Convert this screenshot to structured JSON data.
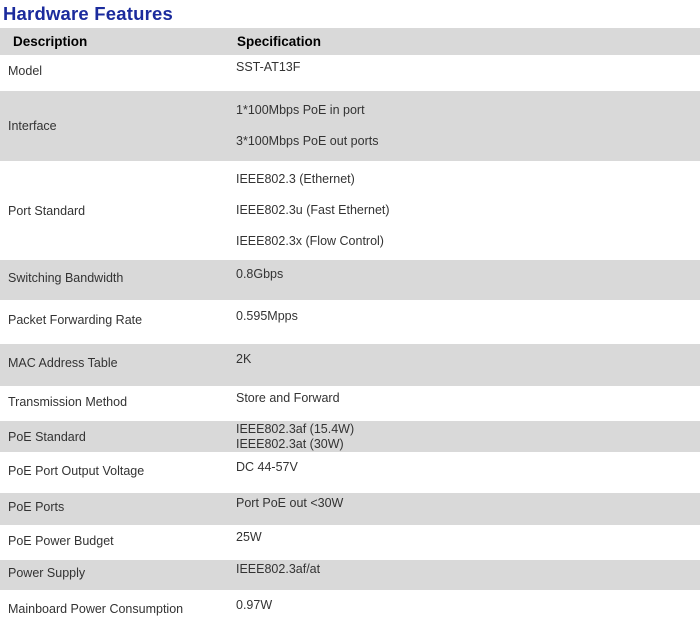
{
  "title": "Hardware Features",
  "accent_color": "#1b2b9d",
  "row_shade_color": "#d9d9d9",
  "table": {
    "headers": [
      "Description",
      "Specification"
    ],
    "rows": [
      {
        "desc": "Model",
        "spec": [
          "SST-AT13F"
        ]
      },
      {
        "desc": "Interface",
        "spec": [
          "1*100Mbps PoE in port",
          "3*100Mbps PoE out ports"
        ]
      },
      {
        "desc": "Port Standard",
        "spec": [
          "IEEE802.3 (Ethernet)",
          "IEEE802.3u (Fast Ethernet)",
          "IEEE802.3x (Flow Control)"
        ]
      },
      {
        "desc": "Switching Bandwidth",
        "spec": [
          "0.8Gbps"
        ]
      },
      {
        "desc": "Packet Forwarding Rate",
        "spec": [
          "0.595Mpps"
        ]
      },
      {
        "desc": "MAC Address Table",
        "spec": [
          "2K"
        ]
      },
      {
        "desc": "Transmission Method",
        "spec": [
          "Store and Forward"
        ]
      },
      {
        "desc": "PoE Standard",
        "spec": [
          "IEEE802.3af (15.4W)",
          "IEEE802.3at (30W)"
        ]
      },
      {
        "desc": "PoE Port Output Voltage",
        "spec": [
          "DC 44-57V"
        ]
      },
      {
        "desc": "PoE Ports",
        "spec": [
          "Port PoE out <30W"
        ]
      },
      {
        "desc": "PoE Power Budget",
        "spec": [
          "25W"
        ]
      },
      {
        "desc": "Power Supply",
        "spec": [
          "IEEE802.3af/at"
        ]
      },
      {
        "desc": "Mainboard Power Consumption",
        "spec": [
          "0.97W"
        ]
      }
    ]
  }
}
